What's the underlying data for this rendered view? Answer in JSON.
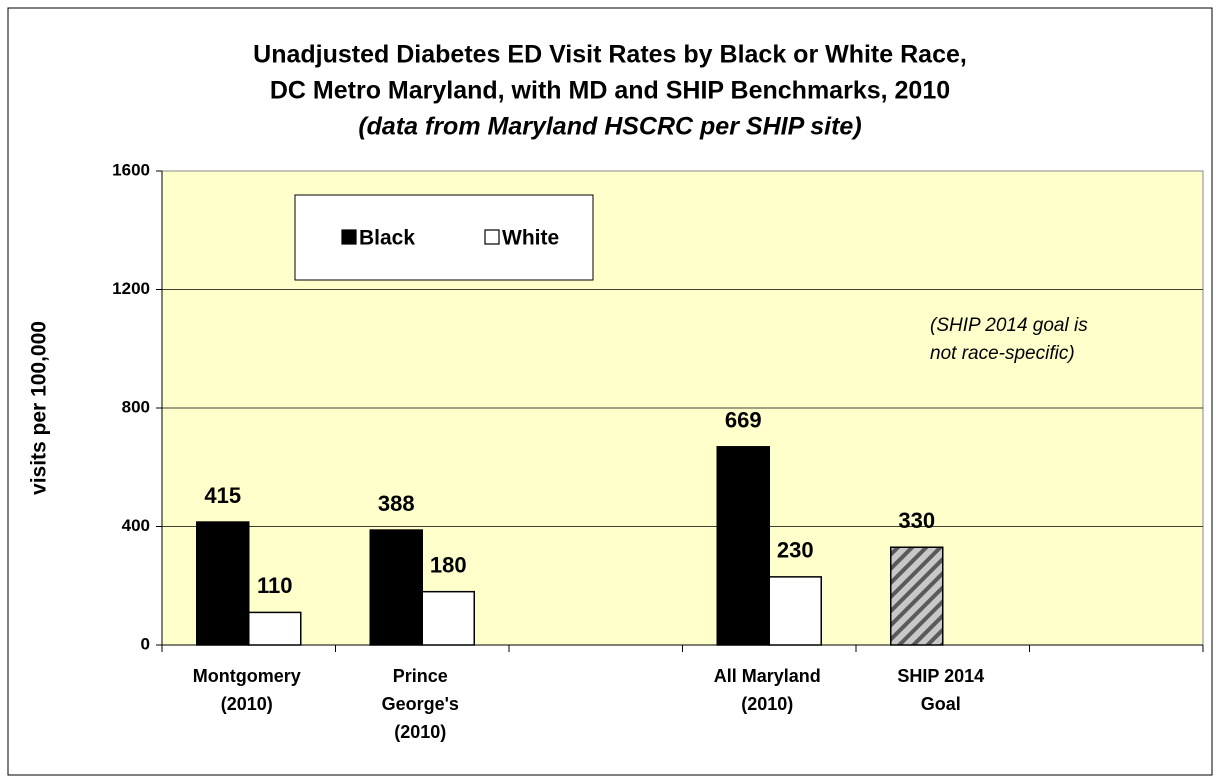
{
  "chart_data": {
    "type": "bar",
    "title": [
      "Unadjusted Diabetes ED Visit Rates by Black or White Race,",
      "DC Metro Maryland, with MD and SHIP Benchmarks, 2010"
    ],
    "subtitle": "(data from Maryland HSCRC per SHIP site)",
    "y_label": "visits per 100,000",
    "annotation": [
      "(SHIP 2014 goal is",
      "not race-specific)"
    ],
    "categories": [
      [
        "Montgomery",
        "(2010)"
      ],
      [
        "Prince",
        "George's",
        "(2010)"
      ],
      null,
      [
        "All Maryland",
        "(2010)"
      ],
      [
        "SHIP 2014",
        "Goal"
      ],
      null
    ],
    "series": [
      {
        "name": "Black",
        "color": "#000000",
        "values": [
          415,
          388,
          null,
          669,
          null,
          null
        ]
      },
      {
        "name": "White",
        "color": "#ffffff",
        "values": [
          110,
          180,
          null,
          230,
          null,
          null
        ]
      },
      {
        "pattern": "hatch",
        "values": [
          null,
          null,
          null,
          null,
          330,
          null
        ]
      }
    ],
    "ylim": [
      0,
      1600
    ],
    "yticks": [
      0,
      400,
      800,
      1200,
      1600
    ],
    "grid": true
  }
}
